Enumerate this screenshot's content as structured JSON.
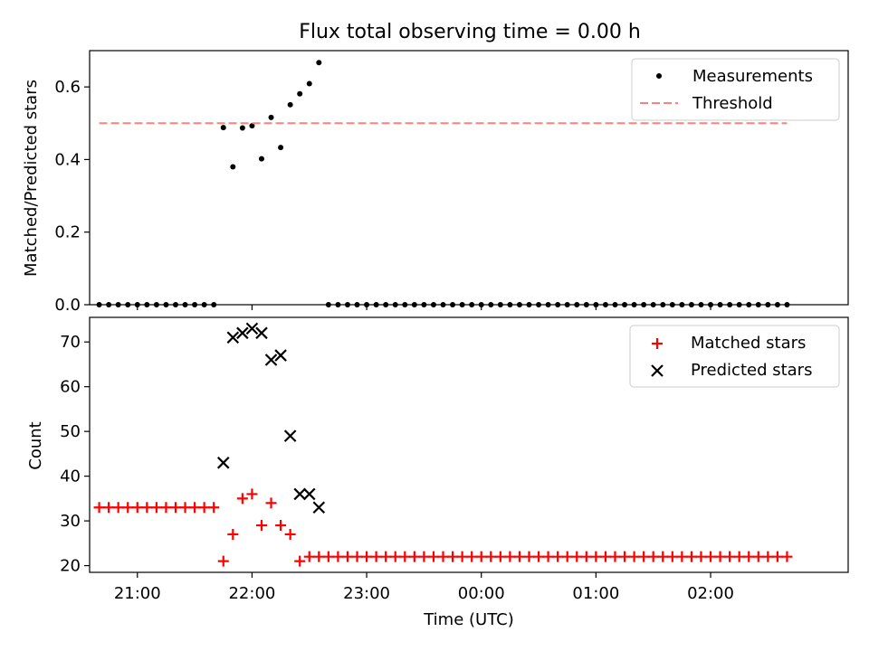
{
  "figure": {
    "title": "Flux total observing time = 0.00 h"
  },
  "chart_data": [
    {
      "type": "scatter",
      "panel": "top",
      "ylabel": "Matched/Predicted stars",
      "ylim": [
        0,
        0.7
      ],
      "yticks": [
        0.0,
        0.2,
        0.4,
        0.6
      ],
      "ytick_labels": [
        "0.0",
        "0.2",
        "0.4",
        "0.6"
      ],
      "xlim": [
        "20:35",
        "03:12"
      ],
      "xticks": [
        "21:00",
        "22:00",
        "23:00",
        "00:00",
        "01:00",
        "02:00"
      ],
      "legend_placement": "top-right",
      "series": [
        {
          "name": "Measurements",
          "marker": "dot",
          "color": "#000000",
          "x": [
            "20:40",
            "20:45",
            "20:50",
            "20:55",
            "21:00",
            "21:05",
            "21:10",
            "21:15",
            "21:20",
            "21:25",
            "21:30",
            "21:35",
            "21:40",
            "21:45",
            "21:50",
            "21:55",
            "22:00",
            "22:05",
            "22:10",
            "22:15",
            "22:20",
            "22:25",
            "22:30",
            "22:35",
            "22:40",
            "22:45",
            "22:50",
            "22:55",
            "23:00",
            "23:05",
            "23:10",
            "23:15",
            "23:20",
            "23:25",
            "23:30",
            "23:35",
            "23:40",
            "23:45",
            "23:50",
            "23:55",
            "00:00",
            "00:05",
            "00:10",
            "00:15",
            "00:20",
            "00:25",
            "00:30",
            "00:35",
            "00:40",
            "00:45",
            "00:50",
            "00:55",
            "01:00",
            "01:05",
            "01:10",
            "01:15",
            "01:20",
            "01:25",
            "01:30",
            "01:35",
            "01:40",
            "01:45",
            "01:50",
            "01:55",
            "02:00",
            "02:05",
            "02:10",
            "02:15",
            "02:20",
            "02:25",
            "02:30",
            "02:35",
            "02:40"
          ],
          "values": [
            0,
            0,
            0,
            0,
            0,
            0,
            0,
            0,
            0,
            0,
            0,
            0,
            0,
            0.488,
            0.38,
            0.487,
            0.493,
            0.402,
            0.516,
            0.433,
            0.551,
            0.581,
            0.609,
            0.667,
            0,
            0,
            0,
            0,
            0,
            0,
            0,
            0,
            0,
            0,
            0,
            0,
            0,
            0,
            0,
            0,
            0,
            0,
            0,
            0,
            0,
            0,
            0,
            0,
            0,
            0,
            0,
            0,
            0,
            0,
            0,
            0,
            0,
            0,
            0,
            0,
            0,
            0,
            0,
            0,
            0,
            0,
            0,
            0,
            0,
            0,
            0,
            0,
            0
          ]
        },
        {
          "name": "Threshold",
          "marker": "dashed-line",
          "color": "#ff8080",
          "x": [
            "20:40",
            "02:40"
          ],
          "values": [
            0.5,
            0.5
          ]
        }
      ]
    },
    {
      "type": "scatter",
      "panel": "bottom",
      "xlabel": "Time (UTC)",
      "ylabel": "Count",
      "ylim": [
        18.5,
        75.5
      ],
      "yticks": [
        20,
        30,
        40,
        50,
        60,
        70
      ],
      "ytick_labels": [
        "20",
        "30",
        "40",
        "50",
        "60",
        "70"
      ],
      "xlim": [
        "20:35",
        "03:12"
      ],
      "xticks": [
        "21:00",
        "22:00",
        "23:00",
        "00:00",
        "01:00",
        "02:00"
      ],
      "xtick_labels": [
        "21:00",
        "22:00",
        "23:00",
        "00:00",
        "01:00",
        "02:00"
      ],
      "legend_placement": "top-right",
      "series": [
        {
          "name": "Matched stars",
          "marker": "plus",
          "color": "#ff0000",
          "x": [
            "20:40",
            "20:45",
            "20:50",
            "20:55",
            "21:00",
            "21:05",
            "21:10",
            "21:15",
            "21:20",
            "21:25",
            "21:30",
            "21:35",
            "21:40",
            "21:45",
            "21:50",
            "21:55",
            "22:00",
            "22:05",
            "22:10",
            "22:15",
            "22:20",
            "22:25",
            "22:30",
            "22:35",
            "22:40",
            "22:45",
            "22:50",
            "22:55",
            "23:00",
            "23:05",
            "23:10",
            "23:15",
            "23:20",
            "23:25",
            "23:30",
            "23:35",
            "23:40",
            "23:45",
            "23:50",
            "23:55",
            "00:00",
            "00:05",
            "00:10",
            "00:15",
            "00:20",
            "00:25",
            "00:30",
            "00:35",
            "00:40",
            "00:45",
            "00:50",
            "00:55",
            "01:00",
            "01:05",
            "01:10",
            "01:15",
            "01:20",
            "01:25",
            "01:30",
            "01:35",
            "01:40",
            "01:45",
            "01:50",
            "01:55",
            "02:00",
            "02:05",
            "02:10",
            "02:15",
            "02:20",
            "02:25",
            "02:30",
            "02:35",
            "02:40"
          ],
          "values": [
            33,
            33,
            33,
            33,
            33,
            33,
            33,
            33,
            33,
            33,
            33,
            33,
            33,
            21,
            27,
            35,
            36,
            29,
            34,
            29,
            27,
            21,
            22,
            22,
            22,
            22,
            22,
            22,
            22,
            22,
            22,
            22,
            22,
            22,
            22,
            22,
            22,
            22,
            22,
            22,
            22,
            22,
            22,
            22,
            22,
            22,
            22,
            22,
            22,
            22,
            22,
            22,
            22,
            22,
            22,
            22,
            22,
            22,
            22,
            22,
            22,
            22,
            22,
            22,
            22,
            22,
            22,
            22,
            22,
            22,
            22,
            22,
            22
          ]
        },
        {
          "name": "Predicted stars",
          "marker": "x",
          "color": "#000000",
          "x": [
            "21:45",
            "21:50",
            "21:55",
            "22:00",
            "22:05",
            "22:10",
            "22:15",
            "22:20",
            "22:25",
            "22:30",
            "22:35"
          ],
          "values": [
            43,
            71,
            72,
            73,
            72,
            66,
            67,
            49,
            36,
            36,
            33
          ]
        }
      ]
    }
  ]
}
